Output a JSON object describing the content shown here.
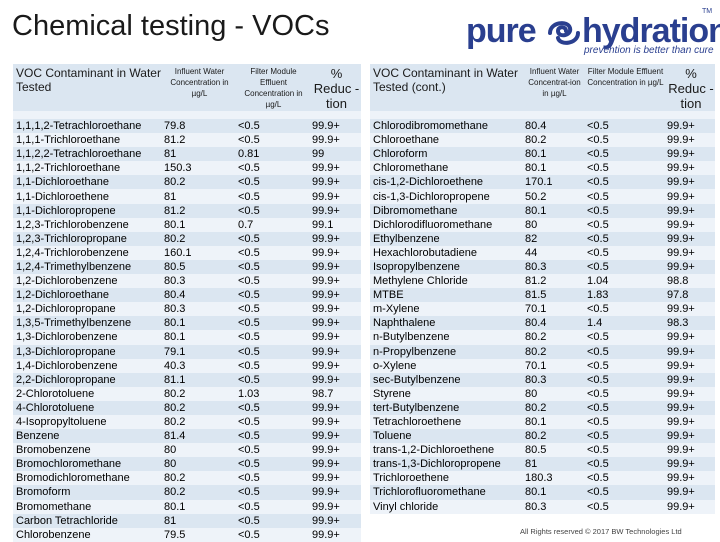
{
  "title": "Chemical testing - VOCs",
  "logo": {
    "word1": "pure",
    "word2": "hydration",
    "tagline": "prevention is better than cure",
    "tm": "TM"
  },
  "footer": "All Rights reserved © 2017 BW Technologies Ltd",
  "left_table": {
    "headers": {
      "contaminant": "VOC Contaminant in Water Tested",
      "influent": "Influent Water Concentration in µg/L",
      "effluent": "Filter Module Effluent Concentration in µg/L",
      "reduction": "% Reduc -tion"
    },
    "rows": [
      [
        "1,1,1,2-Tetrachloroethane",
        "79.8",
        "<0.5",
        "99.9+"
      ],
      [
        "1,1,1-Trichloroethane",
        "81.2",
        "<0.5",
        "99.9+"
      ],
      [
        "1,1,2,2-Tetrachloroethane",
        "81",
        "0.81",
        "99"
      ],
      [
        "1,1,2-Trichloroethane",
        "150.3",
        "<0.5",
        "99.9+"
      ],
      [
        "1,1-Dichloroethane",
        "80.2",
        "<0.5",
        "99.9+"
      ],
      [
        "1,1-Dichloroethene",
        "81",
        "<0.5",
        "99.9+"
      ],
      [
        "1,1-Dichloropropene",
        "81.2",
        "<0.5",
        "99.9+"
      ],
      [
        "1,2,3-Trichlorobenzene",
        "80.1",
        "0.7",
        "99.1"
      ],
      [
        "1,2,3-Trichloropropane",
        "80.2",
        "<0.5",
        "99.9+"
      ],
      [
        "1,2,4-Trichlorobenzene",
        "160.1",
        "<0.5",
        "99.9+"
      ],
      [
        "1,2,4-Trimethylbenzene",
        "80.5",
        "<0.5",
        "99.9+"
      ],
      [
        "1,2-Dichlorobenzene",
        "80.3",
        "<0.5",
        "99.9+"
      ],
      [
        "1,2-Dichloroethane",
        "80.4",
        "<0.5",
        "99.9+"
      ],
      [
        "1,2-Dichloropropane",
        "80.3",
        "<0.5",
        "99.9+"
      ],
      [
        "1,3,5-Trimethylbenzene",
        "80.1",
        "<0.5",
        "99.9+"
      ],
      [
        "1,3-Dichlorobenzene",
        "80.1",
        "<0.5",
        "99.9+"
      ],
      [
        "1,3-Dichloropropane",
        "79.1",
        "<0.5",
        "99.9+"
      ],
      [
        "1,4-Dichlorobenzene",
        "40.3",
        "<0.5",
        "99.9+"
      ],
      [
        "2,2-Dichloropropane",
        "81.1",
        "<0.5",
        "99.9+"
      ],
      [
        "2-Chlorotoluene",
        "80.2",
        "1.03",
        "98.7"
      ],
      [
        "4-Chlorotoluene",
        "80.2",
        "<0.5",
        "99.9+"
      ],
      [
        "4-Isopropyltoluene",
        "80.2",
        "<0.5",
        "99.9+"
      ],
      [
        "Benzene",
        "81.4",
        "<0.5",
        "99.9+"
      ],
      [
        "Bromobenzene",
        "80",
        "<0.5",
        "99.9+"
      ],
      [
        "Bromochloromethane",
        "80",
        "<0.5",
        "99.9+"
      ],
      [
        "Bromodichloromethane",
        "80.2",
        "<0.5",
        "99.9+"
      ],
      [
        "Bromoform",
        "80.2",
        "<0.5",
        "99.9+"
      ],
      [
        "Bromomethane",
        "80.1",
        "<0.5",
        "99.9+"
      ],
      [
        "Carbon Tetrachloride",
        "81",
        "<0.5",
        "99.9+"
      ],
      [
        "Chlorobenzene",
        "79.5",
        "<0.5",
        "99.9+"
      ]
    ]
  },
  "right_table": {
    "headers": {
      "contaminant": "VOC Contaminant in Water Tested (cont.)",
      "influent": "Influent Water Concentrat-ion in µg/L",
      "effluent": "Filter Module Effluent Concentration in µg/L",
      "reduction": "% Reduc -tion"
    },
    "rows": [
      [
        "Chlorodibromomethane",
        "80.4",
        "<0.5",
        "99.9+"
      ],
      [
        "Chloroethane",
        "80.2",
        "<0.5",
        "99.9+"
      ],
      [
        "Chloroform",
        "80.1",
        "<0.5",
        "99.9+"
      ],
      [
        "Chloromethane",
        "80.1",
        "<0.5",
        "99.9+"
      ],
      [
        "cis-1,2-Dichloroethene",
        "170.1",
        "<0.5",
        "99.9+"
      ],
      [
        "cis-1,3-Dichloropropene",
        "50.2",
        "<0.5",
        "99.9+"
      ],
      [
        "Dibromomethane",
        "80.1",
        "<0.5",
        "99.9+"
      ],
      [
        "Dichlorodifluoromethane",
        "80",
        "<0.5",
        "99.9+"
      ],
      [
        "Ethylbenzene",
        "82",
        "<0.5",
        "99.9+"
      ],
      [
        "Hexachlorobutadiene",
        "44",
        "<0.5",
        "99.9+"
      ],
      [
        "Isopropylbenzene",
        "80.3",
        "<0.5",
        "99.9+"
      ],
      [
        "Methylene Chloride",
        "81.2",
        "1.04",
        "98.8"
      ],
      [
        "MTBE",
        "81.5",
        "1.83",
        "97.8"
      ],
      [
        "m-Xylene",
        "70.1",
        "<0.5",
        "99.9+"
      ],
      [
        "Naphthalene",
        "80.4",
        "1.4",
        "98.3"
      ],
      [
        "n-Butylbenzene",
        "80.2",
        "<0.5",
        "99.9+"
      ],
      [
        "n-Propylbenzene",
        "80.2",
        "<0.5",
        "99.9+"
      ],
      [
        "o-Xylene",
        "70.1",
        "<0.5",
        "99.9+"
      ],
      [
        "sec-Butylbenzene",
        "80.3",
        "<0.5",
        "99.9+"
      ],
      [
        "Styrene",
        "80",
        "<0.5",
        "99.9+"
      ],
      [
        "tert-Butylbenzene",
        "80.2",
        "<0.5",
        "99.9+"
      ],
      [
        "Tetrachloroethene",
        "80.1",
        "<0.5",
        "99.9+"
      ],
      [
        "Toluene",
        "80.2",
        "<0.5",
        "99.9+"
      ],
      [
        "trans-1,2-Dichloroethene",
        "80.5",
        "<0.5",
        "99.9+"
      ],
      [
        "trans-1,3-Dichloropropene",
        "81",
        "<0.5",
        "99.9+"
      ],
      [
        "Trichloroethene",
        "180.3",
        "<0.5",
        "99.9+"
      ],
      [
        "Trichlorofluoromethane",
        "80.1",
        "<0.5",
        "99.9+"
      ],
      [
        "Vinyl chloride",
        "80.3",
        "<0.5",
        "99.9+"
      ]
    ]
  }
}
